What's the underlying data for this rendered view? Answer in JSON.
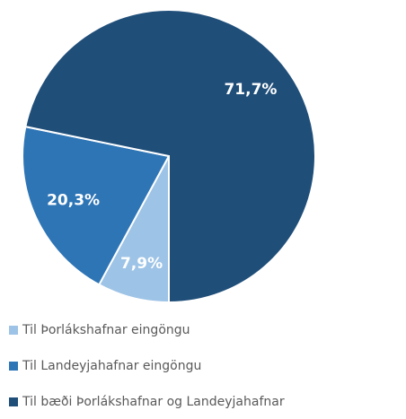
{
  "chart_data": {
    "type": "pie",
    "categories": [
      "Til Þorlákshafnar eingöngu",
      "Til Landeyjahafnar eingöngu",
      "Til bæði Þorlákshafnar og Landeyjahafnar"
    ],
    "values": [
      7.9,
      20.3,
      71.7
    ],
    "value_labels": [
      "7,9%",
      "20,3%",
      "71,7%"
    ],
    "colors": [
      "#9dc3e6",
      "#2e75b6",
      "#1f4e79"
    ],
    "legend": "bottom"
  }
}
